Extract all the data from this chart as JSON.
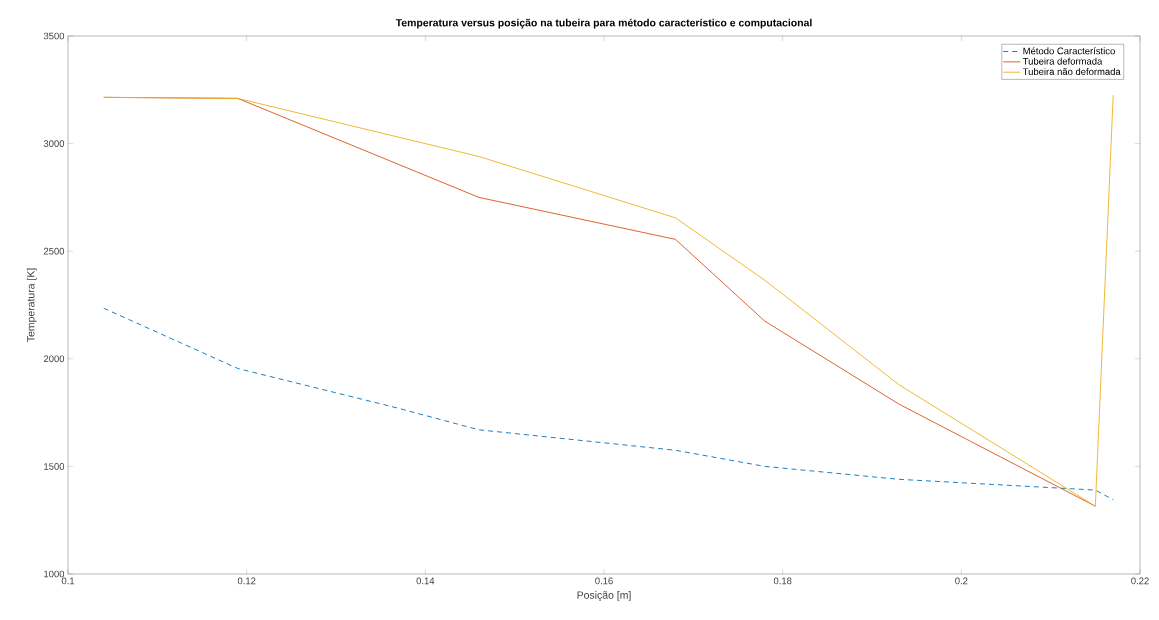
{
  "chart_data": {
    "type": "line",
    "title": "Temperatura versus posição na tubeira para método característico e computacional",
    "xlabel": "Posição [m]",
    "ylabel": "Temperatura [K]",
    "xlim": [
      0.1,
      0.22
    ],
    "ylim": [
      1000,
      3500
    ],
    "xticks": [
      0.1,
      0.12,
      0.14,
      0.16,
      0.18,
      0.2,
      0.22
    ],
    "yticks": [
      1000,
      1500,
      2000,
      2500,
      3000,
      3500
    ],
    "grid": false,
    "legend": "top right",
    "series": [
      {
        "name": "Método Característico",
        "color": "#0072bd",
        "line_style": "dashed",
        "x": [
          0.104,
          0.119,
          0.137,
          0.146,
          0.168,
          0.178,
          0.193,
          0.215,
          0.217
        ],
        "values": [
          2235,
          1955,
          1770,
          1670,
          1575,
          1500,
          1440,
          1390,
          1345
        ]
      },
      {
        "name": "Tubeira deformada",
        "color": "#d95319",
        "line_style": "solid",
        "x": [
          0.104,
          0.119,
          0.146,
          0.168,
          0.178,
          0.193,
          0.215
        ],
        "values": [
          3215,
          3210,
          2750,
          2555,
          2175,
          1790,
          1315
        ]
      },
      {
        "name": "Tubeira não deformada",
        "color": "#edb120",
        "line_style": "solid",
        "x": [
          0.104,
          0.119,
          0.146,
          0.168,
          0.178,
          0.193,
          0.215,
          0.217
        ],
        "values": [
          3215,
          3210,
          2940,
          2655,
          2365,
          1880,
          1315,
          3225
        ]
      }
    ]
  }
}
